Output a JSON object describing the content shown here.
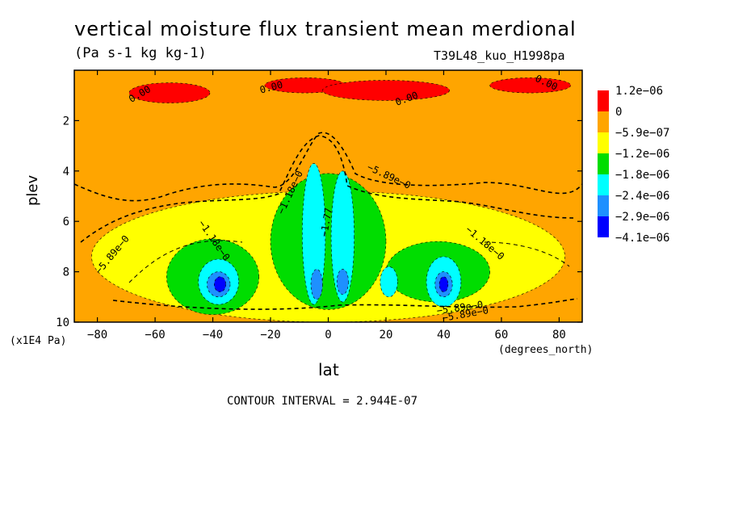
{
  "header": {
    "title": "vertical moisture flux transient mean merdional",
    "units": "(Pa s-1 kg kg-1)",
    "run_name": "T39L48_kuo_H1998pa"
  },
  "footer": {
    "contour_interval": "CONTOUR INTERVAL = 2.944E-07"
  },
  "chart_data": {
    "type": "heatmap",
    "subtype": "filled contour",
    "title": "vertical moisture flux transient mean merdional",
    "subtitle": "(Pa s-1 kg kg-1)",
    "xlabel": "lat",
    "xunit": "(degrees_north)",
    "ylabel": "plev",
    "yunit": "(x1E4 Pa)",
    "xlim": [
      -88,
      88
    ],
    "ylim": [
      10,
      0
    ],
    "y_inverted": true,
    "x_ticks": [
      -80,
      -60,
      -40,
      -20,
      0,
      20,
      40,
      60,
      80
    ],
    "x_tick_labels": [
      "−80",
      "−60",
      "−40",
      "−20",
      "0",
      "20",
      "40",
      "60",
      "80"
    ],
    "y_ticks": [
      2,
      4,
      6,
      8,
      10
    ],
    "y_tick_labels": [
      "2",
      "4",
      "6",
      "8",
      "10"
    ],
    "legend": {
      "placement": "right",
      "levels": [
        "1.2e−06",
        "0",
        "−5.9e−07",
        "−1.2e−06",
        "−1.8e−06",
        "−2.4e−06",
        "−2.9e−06",
        "−4.1e−06"
      ],
      "colors": [
        "#ff0000",
        "#ffa500",
        "#ffff00",
        "#00dd00",
        "#00ffff",
        "#1e90ff",
        "#0000ff"
      ]
    },
    "contour_labels": [
      "0.00",
      "0.00",
      "0.00",
      "0.00",
      "−5.89e−0",
      "−5.89e−0",
      "−1.18e−0",
      "−1.18e−0",
      "−1.77",
      "−5.89e−0",
      "−1.18e−0",
      "−5.89e−0"
    ],
    "regions": [
      {
        "level": "positive",
        "color": "#ff0000",
        "center": [
          -55,
          0.9
        ],
        "extent": [
          14,
          0.4
        ]
      },
      {
        "level": "positive",
        "color": "#ff0000",
        "center": [
          -8,
          0.6
        ],
        "extent": [
          14,
          0.3
        ]
      },
      {
        "level": "positive",
        "color": "#ff0000",
        "center": [
          20,
          0.8
        ],
        "extent": [
          22,
          0.4
        ]
      },
      {
        "level": "positive",
        "color": "#ff0000",
        "center": [
          70,
          0.6
        ],
        "extent": [
          14,
          0.3
        ]
      },
      {
        "level": "-5.9e-07",
        "color": "#ffff00",
        "center": [
          0,
          7.4
        ],
        "extent": [
          82,
          2.6
        ]
      },
      {
        "level": "-1.2e-06",
        "color": "#00dd00",
        "center": [
          -40,
          8.2
        ],
        "extent": [
          16,
          1.5
        ]
      },
      {
        "level": "-1.2e-06",
        "color": "#00dd00",
        "center": [
          0,
          6.8
        ],
        "extent": [
          20,
          2.7
        ]
      },
      {
        "level": "-1.2e-06",
        "color": "#00dd00",
        "center": [
          38,
          8.0
        ],
        "extent": [
          18,
          1.2
        ]
      },
      {
        "level": "-1.8e-06",
        "color": "#00ffff",
        "center": [
          -38,
          8.4
        ],
        "extent": [
          7,
          0.9
        ]
      },
      {
        "level": "-1.8e-06",
        "color": "#00ffff",
        "center": [
          -5,
          6.5
        ],
        "extent": [
          4,
          2.8
        ]
      },
      {
        "level": "-1.8e-06",
        "color": "#00ffff",
        "center": [
          5,
          6.6
        ],
        "extent": [
          4,
          2.6
        ]
      },
      {
        "level": "-1.8e-06",
        "color": "#00ffff",
        "center": [
          21,
          8.4
        ],
        "extent": [
          3,
          0.6
        ]
      },
      {
        "level": "-1.8e-06",
        "color": "#00ffff",
        "center": [
          40,
          8.4
        ],
        "extent": [
          6,
          1.0
        ]
      },
      {
        "level": "-2.4e-06",
        "color": "#1e90ff",
        "center": [
          -38,
          8.5
        ],
        "extent": [
          4,
          0.5
        ]
      },
      {
        "level": "-2.4e-06",
        "color": "#1e90ff",
        "center": [
          -4,
          8.5
        ],
        "extent": [
          2,
          0.6
        ]
      },
      {
        "level": "-2.4e-06",
        "color": "#1e90ff",
        "center": [
          5,
          8.4
        ],
        "extent": [
          2,
          0.5
        ]
      },
      {
        "level": "-2.4e-06",
        "color": "#1e90ff",
        "center": [
          40,
          8.5
        ],
        "extent": [
          3,
          0.5
        ]
      },
      {
        "level": "-2.9e-06",
        "color": "#0000ff",
        "center": [
          -37.5,
          8.5
        ],
        "extent": [
          2,
          0.3
        ]
      },
      {
        "level": "-2.9e-06",
        "color": "#0000ff",
        "center": [
          40,
          8.5
        ],
        "extent": [
          1.5,
          0.3
        ]
      }
    ]
  }
}
